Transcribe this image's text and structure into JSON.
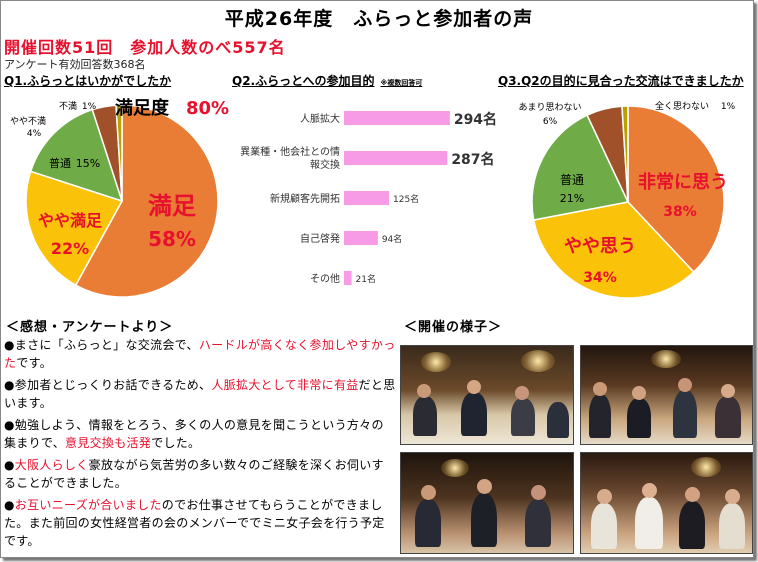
{
  "header": {
    "title": "平成26年度　ふらっと参加者の声",
    "subtitle": "開催回数51回　参加人数のべ557名",
    "valid_responses": "アンケート有効回答数368名"
  },
  "q1": {
    "heading": "Q1.ふらっとはいかがでしたか",
    "callout": "満足度",
    "callout_value": "80%"
  },
  "q2": {
    "heading": "Q2.ふらっとへの参加目的",
    "note": "※複数回答可"
  },
  "q3": {
    "heading": "Q3.Q2の目的に見合った交流はできましたか"
  },
  "comments": {
    "heading": "＜感想・アンケートより＞",
    "items": [
      {
        "bullet": "●",
        "pre": "まさに「ふらっと」な交流会で、",
        "hl": "ハードルが高くなく参加しやすかった",
        "post": "です。"
      },
      {
        "bullet": "●",
        "pre": "参加者とじっくりお話できるため、",
        "hl": "人脈拡大として非常に有益",
        "post": "だと思います。"
      },
      {
        "bullet": "●",
        "pre": "勉強しよう、情報をとろう、多くの人の意見を聞こうという方々の集まりで、",
        "hl": "意見交換も活発",
        "post": "でした。"
      },
      {
        "bullet": "●",
        "pre": "",
        "hl": "大阪人らしく",
        "post": "豪放ながら気苦労の多い数々のご経験を深くお伺いすることができました。"
      },
      {
        "bullet": "●",
        "pre": "",
        "hl": "お互いニーズが合いました",
        "post": "のでお仕事させてもらうことができました。また前回の女性経営者の会のメンバーででミニ女子会を行う予定です。"
      }
    ]
  },
  "photos": {
    "heading": "＜開催の様子＞"
  },
  "colors": {
    "orange": "#ea7d35",
    "yellow": "#fbc20a",
    "green": "#6fab46",
    "brown": "#a0512a",
    "olive": "#b9a000",
    "pink": "#f79be6",
    "red": "#e8112d"
  },
  "chart_data": [
    {
      "type": "pie",
      "title": "Q1.ふらっとはいかがでしたか",
      "slices": [
        {
          "label": "満足",
          "value": 58,
          "display": "58%"
        },
        {
          "label": "やや満足",
          "value": 22,
          "display": "22%"
        },
        {
          "label": "普通",
          "value": 15,
          "display": "15%"
        },
        {
          "label": "やや不満",
          "value": 4,
          "display": "4%"
        },
        {
          "label": "不満",
          "value": 1,
          "display": "1%"
        }
      ]
    },
    {
      "type": "bar",
      "orientation": "horizontal",
      "title": "Q2.ふらっとへの参加目的",
      "categories": [
        "人脈拡大",
        "異業種・他会社との情報交換",
        "新規顧客先開拓",
        "自己啓発",
        "その他"
      ],
      "values": [
        294,
        287,
        125,
        94,
        21
      ],
      "value_labels": [
        "294名",
        "287名",
        "125名",
        "94名",
        "21名"
      ],
      "xlim": [
        0,
        300
      ]
    },
    {
      "type": "pie",
      "title": "Q3.Q2の目的に見合った交流はできましたか",
      "slices": [
        {
          "label": "非常に思う",
          "value": 38,
          "display": "38%"
        },
        {
          "label": "やや思う",
          "value": 34,
          "display": "34%"
        },
        {
          "label": "普通",
          "value": 21,
          "display": "21%"
        },
        {
          "label": "あまり思わない",
          "value": 6,
          "display": "6%"
        },
        {
          "label": "全く思わない",
          "value": 1,
          "display": "1%"
        }
      ]
    }
  ]
}
